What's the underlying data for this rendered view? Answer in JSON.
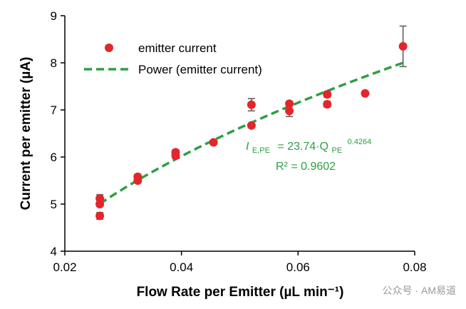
{
  "chart_data": {
    "type": "scatter",
    "xlabel": "Flow Rate per Emitter (µL min⁻¹)",
    "ylabel": "Current per emitter (µA)",
    "xlim": [
      0.02,
      0.08
    ],
    "ylim": [
      4,
      9
    ],
    "x_ticks": [
      "0.02",
      "0.04",
      "0.06",
      "0.08"
    ],
    "x_tick_values": [
      0.02,
      0.04,
      0.06,
      0.08
    ],
    "y_ticks": [
      "4",
      "5",
      "6",
      "7",
      "8",
      "9"
    ],
    "y_tick_values": [
      4,
      5,
      6,
      7,
      8,
      9
    ],
    "legend": {
      "position": "top-left",
      "entries": [
        {
          "label": "emitter current",
          "marker": "circle",
          "color": "#e3262b"
        },
        {
          "label": "Power (emitter current)",
          "marker": "dashed-line",
          "color": "#2ea043"
        }
      ]
    },
    "series": [
      {
        "name": "emitter current",
        "color": "#e3262b",
        "points": [
          {
            "x": 0.026,
            "y": 5.12,
            "err": 0.08
          },
          {
            "x": 0.026,
            "y": 5.0,
            "err": 0.05
          },
          {
            "x": 0.026,
            "y": 4.75,
            "err": 0.07
          },
          {
            "x": 0.0325,
            "y": 5.58,
            "err": 0.05
          },
          {
            "x": 0.0325,
            "y": 5.5,
            "err": 0.05
          },
          {
            "x": 0.039,
            "y": 6.1,
            "err": 0.05
          },
          {
            "x": 0.039,
            "y": 6.03,
            "err": 0.06
          },
          {
            "x": 0.0455,
            "y": 6.31,
            "err": 0.03
          },
          {
            "x": 0.052,
            "y": 7.11,
            "err": 0.13
          },
          {
            "x": 0.052,
            "y": 6.67,
            "err": 0.04
          },
          {
            "x": 0.0585,
            "y": 7.13,
            "err": 0.05
          },
          {
            "x": 0.0585,
            "y": 6.98,
            "err": 0.12
          },
          {
            "x": 0.065,
            "y": 7.33,
            "err": 0.06
          },
          {
            "x": 0.065,
            "y": 7.12,
            "err": 0.06
          },
          {
            "x": 0.0715,
            "y": 7.35,
            "err": 0.03
          },
          {
            "x": 0.078,
            "y": 8.35,
            "err": 0.43
          }
        ]
      },
      {
        "name": "Power (emitter current)",
        "type": "line",
        "style": "dashed",
        "color": "#2ea043",
        "fit": {
          "a": 23.74,
          "b": 0.4264
        },
        "x_range": [
          0.026,
          0.078
        ]
      }
    ],
    "annotation": {
      "lhs_symbol": "I",
      "lhs_subscript": "E,PE",
      "eq_coeff": "= 23.74·Q",
      "rhs_subscript": "PE",
      "rhs_exponent": "0.4264",
      "r2": "R² = 0.9602"
    }
  },
  "watermark": "公众号 · AM易道"
}
